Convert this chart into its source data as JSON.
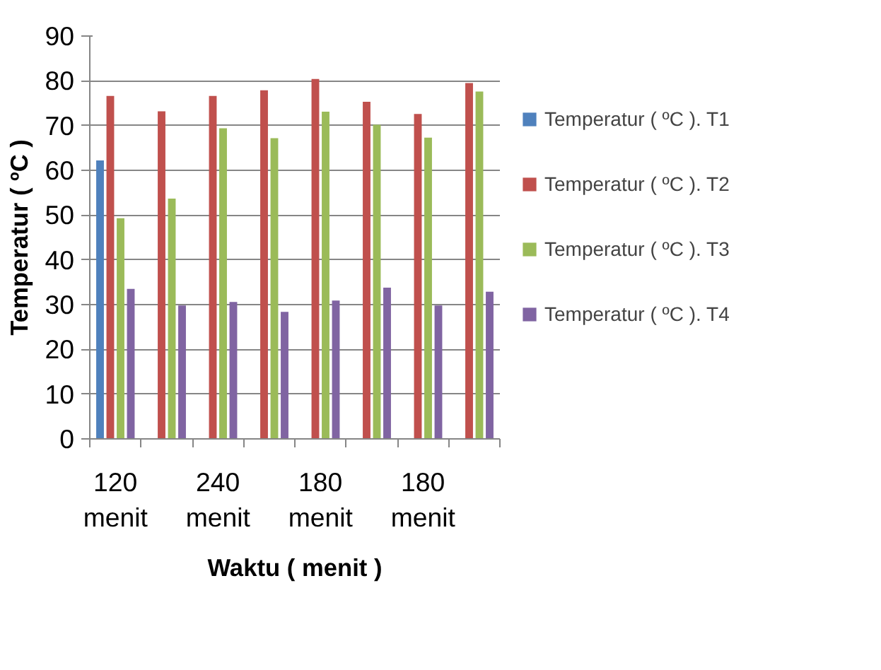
{
  "chart_data": {
    "type": "bar",
    "xlabel": "Waktu ( menit )",
    "ylabel": "Temperatur ( ºC )",
    "categories": [
      "120 menit",
      null,
      "240 menit",
      null,
      "180 menit",
      null,
      "180 menit",
      null
    ],
    "series": [
      {
        "name": "Temperatur ( ºC ). T1",
        "color": "#4f81bd",
        "values": [
          62.2,
          null,
          null,
          null,
          null,
          null,
          null,
          null
        ]
      },
      {
        "name": "Temperatur ( ºC ). T2",
        "color": "#c0504d",
        "values": [
          76.6,
          73.2,
          76.6,
          77.9,
          80.4,
          75.3,
          72.6,
          79.5
        ]
      },
      {
        "name": "Temperatur ( ºC ). T3",
        "color": "#9bbb59",
        "values": [
          49.3,
          53.7,
          69.4,
          67.2,
          73.1,
          70.2,
          67.3,
          77.6
        ]
      },
      {
        "name": "Temperatur ( ºC ). T4",
        "color": "#8064a2",
        "values": [
          33.5,
          29.8,
          30.6,
          28.4,
          30.9,
          33.8,
          29.8,
          32.9
        ]
      }
    ],
    "ylim": [
      0,
      90
    ],
    "yticks": [
      0,
      10,
      20,
      30,
      40,
      50,
      60,
      70,
      80,
      90
    ],
    "grid": "y",
    "legend": "right"
  }
}
